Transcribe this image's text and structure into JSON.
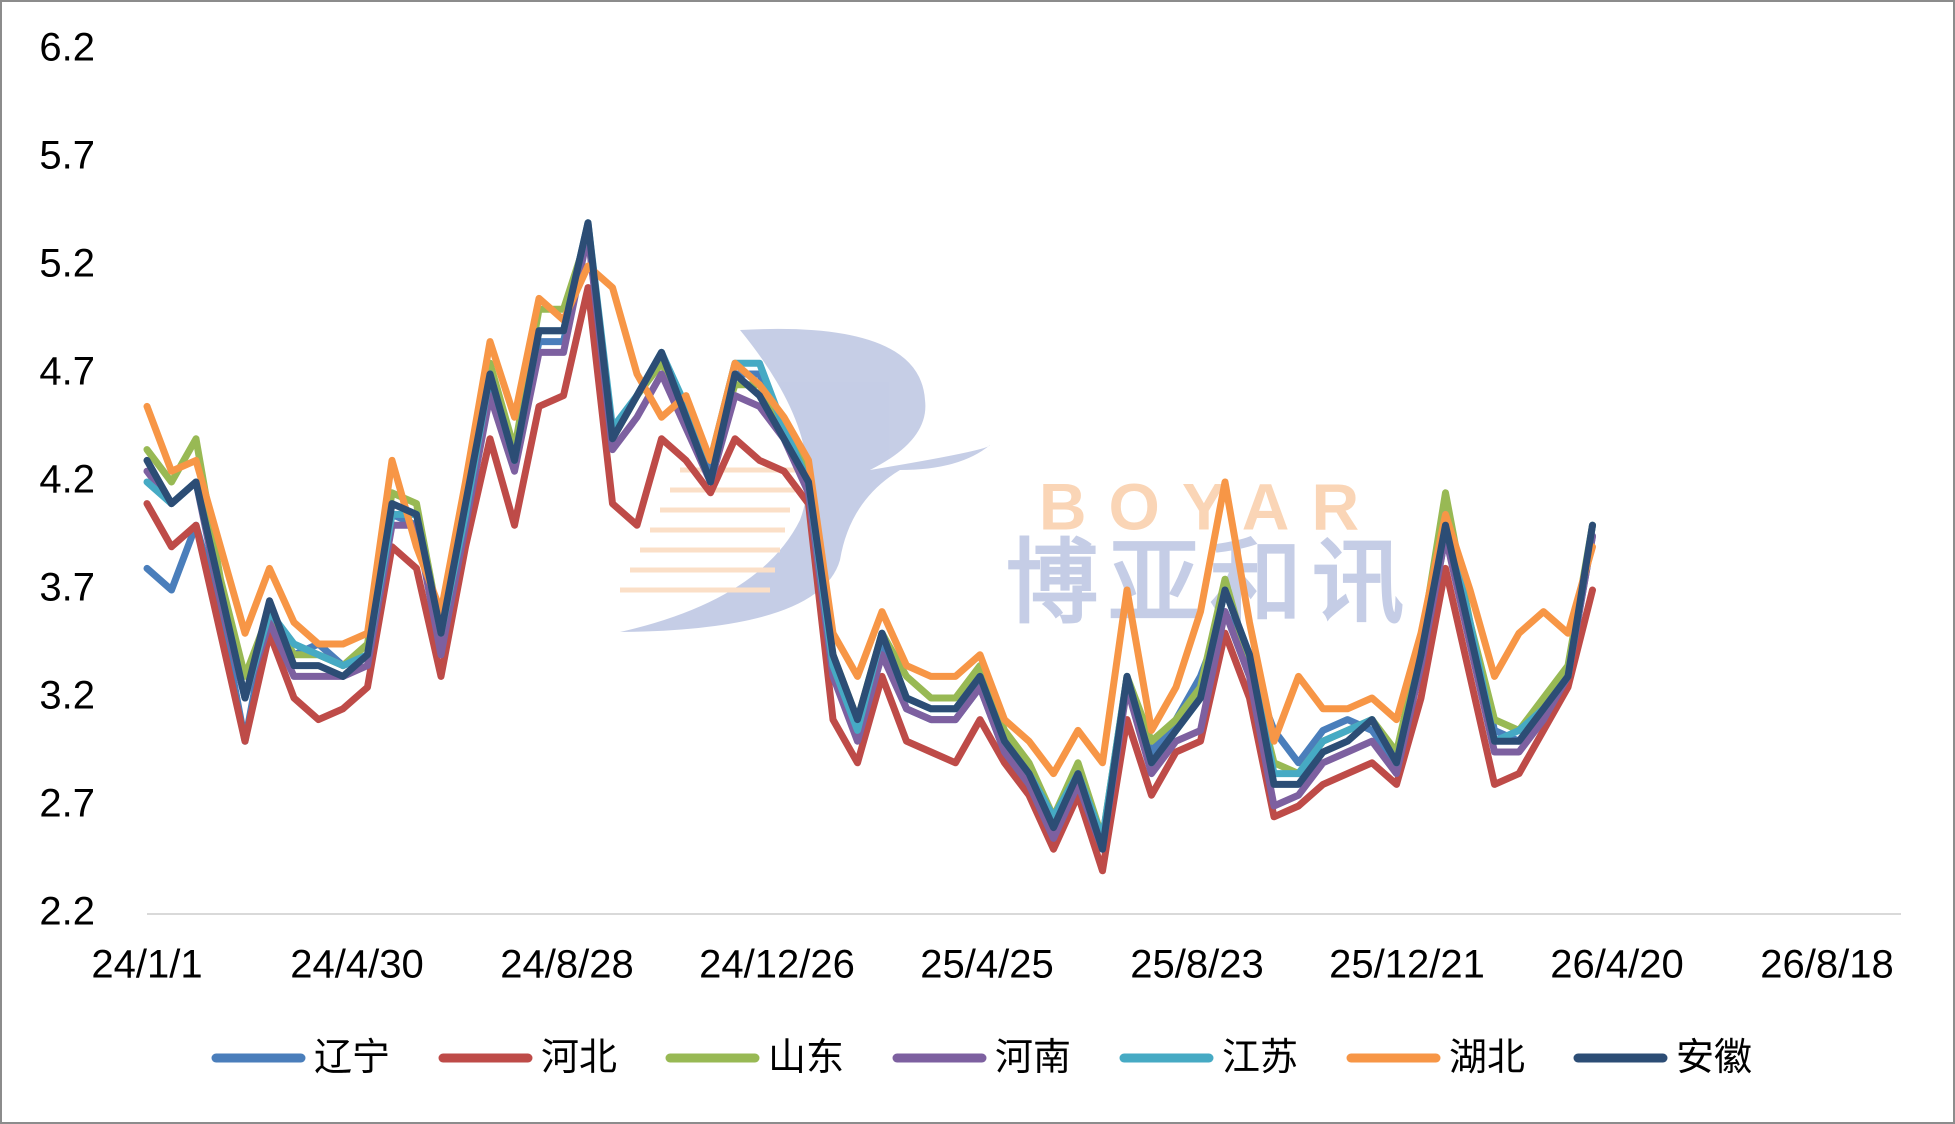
{
  "chart_data": {
    "type": "line",
    "x": [
      "24/1/1",
      "24/1/15",
      "24/1/29",
      "24/2/12",
      "24/2/26",
      "24/3/11",
      "24/3/25",
      "24/4/8",
      "24/4/22",
      "24/5/6",
      "24/5/20",
      "24/6/3",
      "24/6/17",
      "24/7/1",
      "24/7/15",
      "24/7/29",
      "24/8/12",
      "24/8/26",
      "24/9/9",
      "24/9/23",
      "24/10/7",
      "24/10/21",
      "24/11/4",
      "24/11/18",
      "24/12/2",
      "24/12/16",
      "24/12/30",
      "25/1/13",
      "25/1/27",
      "25/2/10",
      "25/2/24",
      "25/3/10",
      "25/3/24",
      "25/4/7",
      "25/4/21",
      "25/5/5",
      "25/5/19",
      "25/6/2",
      "25/6/16",
      "25/6/30",
      "25/7/14",
      "25/7/28",
      "25/8/11",
      "25/8/25",
      "25/9/8",
      "25/9/22",
      "25/10/6",
      "25/10/20",
      "25/11/3",
      "25/11/17",
      "25/12/1",
      "25/12/15",
      "25/12/29",
      "26/1/12",
      "26/1/26",
      "26/2/9",
      "26/2/23",
      "26/3/9",
      "26/3/23",
      "26/4/6"
    ],
    "series": [
      {
        "name": "辽宁",
        "color": "#4a7ebb",
        "values": [
          3.8,
          3.7,
          4.0,
          3.6,
          3.0,
          3.6,
          3.4,
          3.45,
          3.35,
          3.4,
          4.05,
          4.0,
          3.45,
          4.05,
          4.65,
          4.3,
          4.85,
          4.85,
          5.35,
          4.4,
          4.6,
          4.8,
          4.5,
          4.25,
          4.7,
          4.7,
          4.45,
          4.15,
          3.3,
          3.05,
          3.45,
          3.15,
          3.1,
          3.1,
          3.25,
          2.95,
          2.8,
          2.6,
          2.8,
          2.55,
          3.25,
          2.95,
          3.1,
          3.3,
          3.6,
          3.35,
          3.05,
          2.9,
          3.05,
          3.1,
          3.05,
          2.9,
          3.35,
          3.95,
          3.55,
          3.05,
          3.0,
          3.15,
          3.3,
          3.95
        ]
      },
      {
        "name": "河北",
        "color": "#be4b48",
        "values": [
          4.1,
          3.9,
          4.0,
          3.5,
          3.0,
          3.5,
          3.2,
          3.1,
          3.15,
          3.25,
          3.9,
          3.8,
          3.3,
          3.9,
          4.4,
          4.0,
          4.55,
          4.6,
          5.1,
          4.1,
          4.0,
          4.4,
          4.3,
          4.15,
          4.4,
          4.3,
          4.25,
          4.1,
          3.1,
          2.9,
          3.3,
          3.0,
          2.95,
          2.9,
          3.1,
          2.9,
          2.75,
          2.5,
          2.75,
          2.4,
          3.1,
          2.75,
          2.95,
          3.0,
          3.5,
          3.2,
          2.65,
          2.7,
          2.8,
          2.85,
          2.9,
          2.8,
          3.2,
          3.8,
          3.3,
          2.8,
          2.85,
          3.05,
          3.25,
          3.7
        ]
      },
      {
        "name": "山东",
        "color": "#98b954",
        "values": [
          4.35,
          4.2,
          4.4,
          3.75,
          3.3,
          3.6,
          3.4,
          3.4,
          3.35,
          3.45,
          4.15,
          4.1,
          3.5,
          4.15,
          4.75,
          4.35,
          5.0,
          5.0,
          5.35,
          4.4,
          4.6,
          4.75,
          4.55,
          4.3,
          4.65,
          4.65,
          4.45,
          4.25,
          3.4,
          3.1,
          3.5,
          3.3,
          3.2,
          3.2,
          3.35,
          3.05,
          2.9,
          2.65,
          2.9,
          2.55,
          3.3,
          3.0,
          3.1,
          3.25,
          3.75,
          3.35,
          2.9,
          2.85,
          3.0,
          3.05,
          3.1,
          2.95,
          3.45,
          4.15,
          3.55,
          3.1,
          3.05,
          3.2,
          3.35,
          4.0
        ]
      },
      {
        "name": "河南",
        "color": "#7d60a0",
        "values": [
          4.25,
          4.1,
          4.2,
          3.65,
          3.2,
          3.55,
          3.3,
          3.3,
          3.3,
          3.35,
          4.0,
          4.0,
          3.4,
          4.0,
          4.6,
          4.25,
          4.8,
          4.8,
          5.35,
          4.35,
          4.5,
          4.7,
          4.45,
          4.2,
          4.6,
          4.55,
          4.4,
          4.15,
          3.3,
          3.0,
          3.4,
          3.15,
          3.1,
          3.1,
          3.25,
          2.95,
          2.8,
          2.55,
          2.8,
          2.5,
          3.25,
          2.85,
          3.0,
          3.05,
          3.6,
          3.3,
          2.7,
          2.75,
          2.9,
          2.95,
          3.0,
          2.85,
          3.35,
          3.95,
          3.45,
          2.95,
          2.95,
          3.1,
          3.3,
          3.95
        ]
      },
      {
        "name": "江苏",
        "color": "#46aac4",
        "values": [
          4.2,
          4.1,
          4.2,
          3.7,
          3.2,
          3.6,
          3.45,
          3.4,
          3.35,
          3.4,
          4.05,
          4.05,
          3.5,
          4.05,
          4.7,
          4.3,
          4.9,
          4.9,
          5.4,
          4.45,
          4.6,
          4.8,
          4.55,
          4.3,
          4.75,
          4.75,
          4.45,
          4.2,
          3.35,
          3.05,
          3.5,
          3.2,
          3.15,
          3.15,
          3.3,
          3.0,
          2.85,
          2.65,
          2.85,
          2.55,
          3.3,
          2.9,
          3.05,
          3.2,
          3.7,
          3.4,
          2.85,
          2.85,
          3.0,
          3.05,
          3.1,
          2.9,
          3.4,
          4.05,
          3.55,
          3.0,
          3.05,
          3.15,
          3.3,
          4.0
        ]
      },
      {
        "name": "湖北",
        "color": "#f79646",
        "values": [
          4.55,
          4.25,
          4.3,
          3.9,
          3.5,
          3.8,
          3.55,
          3.45,
          3.45,
          3.5,
          4.3,
          3.9,
          3.6,
          4.2,
          4.85,
          4.5,
          5.05,
          4.95,
          5.2,
          5.1,
          4.7,
          4.5,
          4.6,
          4.3,
          4.75,
          4.65,
          4.5,
          4.3,
          3.5,
          3.3,
          3.6,
          3.35,
          3.3,
          3.3,
          3.4,
          3.1,
          3.0,
          2.85,
          3.05,
          2.9,
          3.7,
          3.05,
          3.25,
          3.6,
          4.2,
          3.55,
          3.0,
          3.3,
          3.15,
          3.15,
          3.2,
          3.1,
          3.5,
          4.05,
          3.7,
          3.3,
          3.5,
          3.6,
          3.5,
          3.9
        ]
      },
      {
        "name": "安徽",
        "color": "#2c4d75",
        "values": [
          4.3,
          4.1,
          4.2,
          3.7,
          3.2,
          3.65,
          3.35,
          3.35,
          3.3,
          3.4,
          4.1,
          4.05,
          3.5,
          4.1,
          4.7,
          4.3,
          4.9,
          4.9,
          5.4,
          4.4,
          4.6,
          4.8,
          4.5,
          4.2,
          4.7,
          4.6,
          4.4,
          4.2,
          3.4,
          3.1,
          3.5,
          3.2,
          3.15,
          3.15,
          3.3,
          3.0,
          2.85,
          2.6,
          2.85,
          2.5,
          3.3,
          2.9,
          3.05,
          3.2,
          3.7,
          3.4,
          2.8,
          2.8,
          2.95,
          3.0,
          3.1,
          2.9,
          3.4,
          4.0,
          3.5,
          3.0,
          3.0,
          3.15,
          3.3,
          4.0
        ]
      }
    ],
    "xlim": [
      "24/1/1",
      "26/8/18"
    ],
    "xticks": [
      "24/1/1",
      "24/4/30",
      "24/8/28",
      "24/12/26",
      "25/4/25",
      "25/8/23",
      "25/12/21",
      "26/4/20",
      "26/8/18"
    ],
    "ylim": [
      2.2,
      6.2
    ],
    "yticks": [
      2.2,
      2.7,
      3.2,
      3.7,
      4.2,
      4.7,
      5.2,
      5.7,
      6.2
    ],
    "grid": false,
    "legend": "bottom",
    "watermark": [
      "BOYAR",
      "博亚和讯"
    ]
  }
}
